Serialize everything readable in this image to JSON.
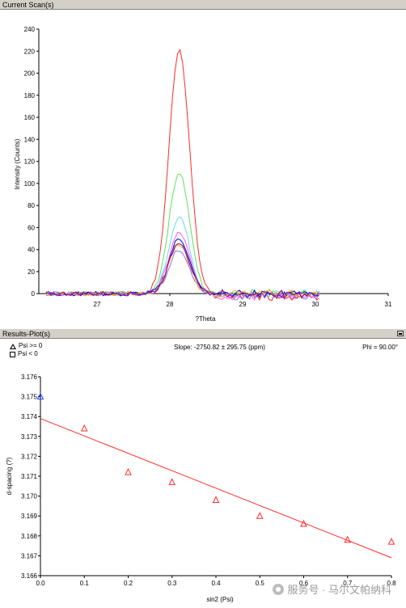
{
  "panels": {
    "top_title": "Current Scan(s)",
    "bottom_title": "Results-Plot(s)"
  },
  "results_header": {
    "legend": [
      {
        "symbol": "triangle",
        "label": "Psi >= 0"
      },
      {
        "symbol": "square",
        "label": "Psi <  0"
      }
    ],
    "slope": "Slope: -2750.82 ± 295.75 (ppm)",
    "phi": "Phi = 90.00°"
  },
  "watermark": "服务号 · 马尔文帕纳科",
  "chart_data": [
    {
      "type": "line",
      "xlabel": "?Theta",
      "ylabel": "Intensity (Counts)",
      "xlim": [
        26.2,
        31
      ],
      "ylim": [
        -5,
        240
      ],
      "xticks": [
        27,
        28,
        29,
        30,
        31
      ],
      "yticks": [
        0,
        20,
        40,
        60,
        80,
        100,
        120,
        140,
        160,
        180,
        200,
        220,
        240
      ],
      "series": [
        {
          "color": "#ff2a2a",
          "peak": 222,
          "width": 0.14,
          "baseline": 0
        },
        {
          "color": "#5fe05f",
          "peak": 110,
          "width": 0.14,
          "baseline": 0
        },
        {
          "color": "#66d9ee",
          "peak": 70,
          "width": 0.14,
          "baseline": 0
        },
        {
          "color": "#ff55ff",
          "peak": 55,
          "width": 0.14,
          "baseline": 0
        },
        {
          "color": "#0000cc",
          "peak": 50,
          "width": 0.14,
          "baseline": 0
        },
        {
          "color": "#ffaa00",
          "peak": 44,
          "width": 0.14,
          "baseline": 0
        },
        {
          "color": "#9a6adf",
          "peak": 40,
          "width": 0.14,
          "baseline": 0
        },
        {
          "color": "#800080",
          "peak": 47,
          "width": 0.14,
          "baseline": 0
        }
      ],
      "peak_center": 28.13
    },
    {
      "type": "scatter",
      "xlabel": "sin2 (Psi)",
      "ylabel": "d-spacing (?)",
      "xlim": [
        0,
        0.8
      ],
      "ylim": [
        3.166,
        3.176
      ],
      "xticks": [
        "0.0",
        "0.1",
        "0.2",
        "0.3",
        "0.4",
        "0.5",
        "0.6",
        "0.7",
        "0.8"
      ],
      "yticks": [
        "3.166",
        "3.167",
        "3.168",
        "3.169",
        "3.170",
        "3.171",
        "3.172",
        "3.173",
        "3.174",
        "3.175",
        "3.176"
      ],
      "points": [
        {
          "x": 0.0,
          "y": 3.175,
          "color": "#2040ff"
        },
        {
          "x": 0.1,
          "y": 3.1734,
          "color": "#ff2a2a"
        },
        {
          "x": 0.2,
          "y": 3.1712,
          "color": "#ff2a2a"
        },
        {
          "x": 0.3,
          "y": 3.1707,
          "color": "#ff2a2a"
        },
        {
          "x": 0.4,
          "y": 3.1698,
          "color": "#ff2a2a"
        },
        {
          "x": 0.5,
          "y": 3.169,
          "color": "#ff2a2a"
        },
        {
          "x": 0.6,
          "y": 3.1686,
          "color": "#ff2a2a"
        },
        {
          "x": 0.7,
          "y": 3.1678,
          "color": "#ff2a2a"
        },
        {
          "x": 0.8,
          "y": 3.1677,
          "color": "#ff2a2a"
        }
      ],
      "fit_line": {
        "x": [
          0.0,
          0.8
        ],
        "y": [
          3.1739,
          3.1669
        ],
        "color": "#ff2a2a"
      }
    }
  ]
}
